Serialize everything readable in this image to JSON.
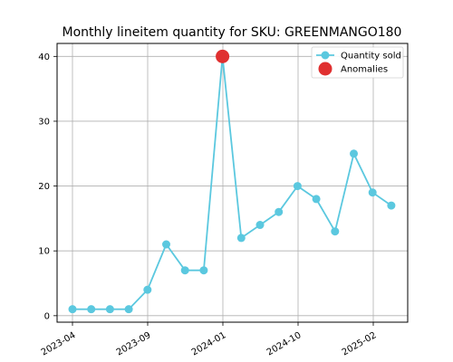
{
  "chart_data": {
    "type": "line",
    "title": "Monthly lineitem quantity for SKU: GREENMANGO180",
    "xlabel": "",
    "ylabel": "",
    "x_ticks": [
      "2023-04",
      "2023-09",
      "2024-01",
      "2024-10",
      "2025-02"
    ],
    "y_ticks": [
      0,
      10,
      20,
      30,
      40
    ],
    "ylim": [
      -1,
      42
    ],
    "grid": true,
    "legend_position": "top-right",
    "series": [
      {
        "name": "Quantity sold",
        "color": "#5bc8df",
        "points": [
          {
            "x": "2023-04",
            "y": 1
          },
          {
            "x": "2023-05",
            "y": 1
          },
          {
            "x": "2023-06",
            "y": 1
          },
          {
            "x": "2023-07",
            "y": 1
          },
          {
            "x": "2023-08",
            "y": 4
          },
          {
            "x": "2023-09",
            "y": 11
          },
          {
            "x": "2023-10",
            "y": 7
          },
          {
            "x": "2023-11",
            "y": 7
          },
          {
            "x": "2023-12",
            "y": 40
          },
          {
            "x": "2024-01",
            "y": 12
          },
          {
            "x": "2024-02",
            "y": 14
          },
          {
            "x": "2024-03",
            "y": 16
          },
          {
            "x": "2024-04",
            "y": 20
          },
          {
            "x": "2024-05",
            "y": 18
          },
          {
            "x": "2024-06",
            "y": 13
          },
          {
            "x": "2024-07",
            "y": 25
          },
          {
            "x": "2024-08",
            "y": 19
          },
          {
            "x": "2024-09",
            "y": 17
          }
        ]
      },
      {
        "name": "Anomalies",
        "color": "#e03030",
        "points": [
          {
            "x": "2023-12",
            "y": 40
          }
        ]
      }
    ]
  }
}
